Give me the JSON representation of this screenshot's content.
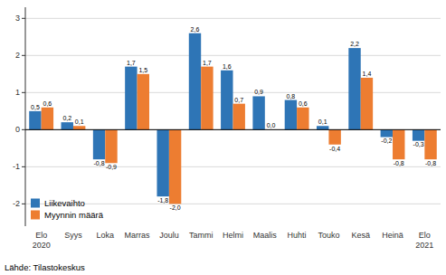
{
  "chart_data": {
    "type": "bar",
    "categories": [
      "Elo\n2020",
      "Syys",
      "Loka",
      "Marras",
      "Joulu",
      "Tammi",
      "Helmi",
      "Maalis",
      "Huhti",
      "Touko",
      "Kesä",
      "Heinä",
      "Elo\n2021"
    ],
    "series": [
      {
        "name": "Liikevaihto",
        "color": "#2e75b6",
        "values": [
          0.5,
          0.2,
          -0.8,
          1.7,
          -1.8,
          2.6,
          1.6,
          0.9,
          0.8,
          0.1,
          2.2,
          -0.2,
          -0.3
        ],
        "value_labels": [
          "0,5",
          "0,2",
          "-0,8",
          "1,7",
          "-1,8",
          "2,6",
          "1,6",
          "0,9",
          "0,8",
          "0,1",
          "2,2",
          "-0,2",
          "-0,3"
        ]
      },
      {
        "name": "Myynnin määrä",
        "color": "#ed7d31",
        "values": [
          0.6,
          0.1,
          -0.9,
          1.5,
          -2.0,
          1.7,
          0.7,
          0.0,
          0.6,
          -0.4,
          1.4,
          -0.8,
          -0.8
        ],
        "value_labels": [
          "0,6",
          "0,1",
          "-0,9",
          "1,5",
          "-2,0",
          "1,7",
          "0,7",
          "0,0",
          "0,6",
          "-0,4",
          "1,4",
          "-0,8",
          "-0,8"
        ]
      }
    ],
    "ylim": [
      -2.6,
      3.3
    ],
    "yticks": [
      -2,
      -1,
      0,
      1,
      2,
      3
    ],
    "grid": true,
    "legend": "lower left",
    "data_labels": true,
    "annotations": [
      "Lähde: Tilastokeskus"
    ]
  }
}
